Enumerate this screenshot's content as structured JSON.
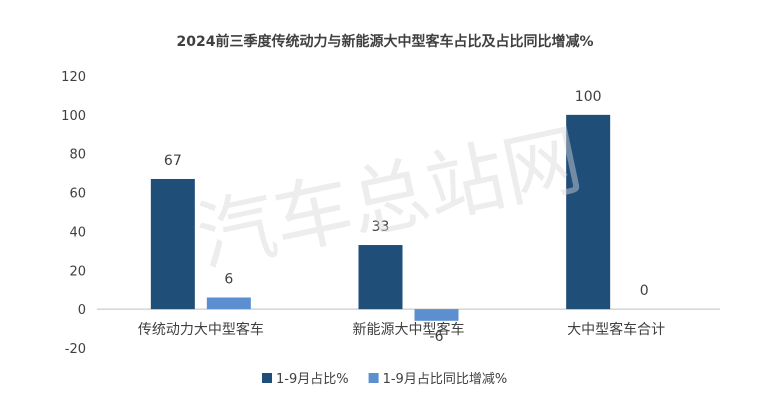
{
  "chart_data": {
    "type": "bar",
    "title": "2024前三季度传统动力与新能源大中型客车占比及占比同比增减%",
    "categories": [
      "传统动力大中型客车",
      "新能源大中型客车",
      "大中型客车合计"
    ],
    "series": [
      {
        "name": "1-9月占比%",
        "values": [
          67,
          33,
          100
        ],
        "color": "#1f4e79"
      },
      {
        "name": "1-9月占比同比增减%",
        "values": [
          6,
          -6,
          0
        ],
        "color": "#5b8fd0"
      }
    ],
    "ylim": [
      -20,
      120
    ],
    "yticks": [
      "-20",
      "0",
      "20",
      "40",
      "60",
      "80",
      "100",
      "120"
    ],
    "data_labels": [
      [
        "67",
        "33",
        "100"
      ],
      [
        "6",
        "-6",
        "0"
      ]
    ],
    "grid": false,
    "legend": "bottom",
    "xlabel": "",
    "ylabel": ""
  },
  "watermark": "汽车总站网"
}
